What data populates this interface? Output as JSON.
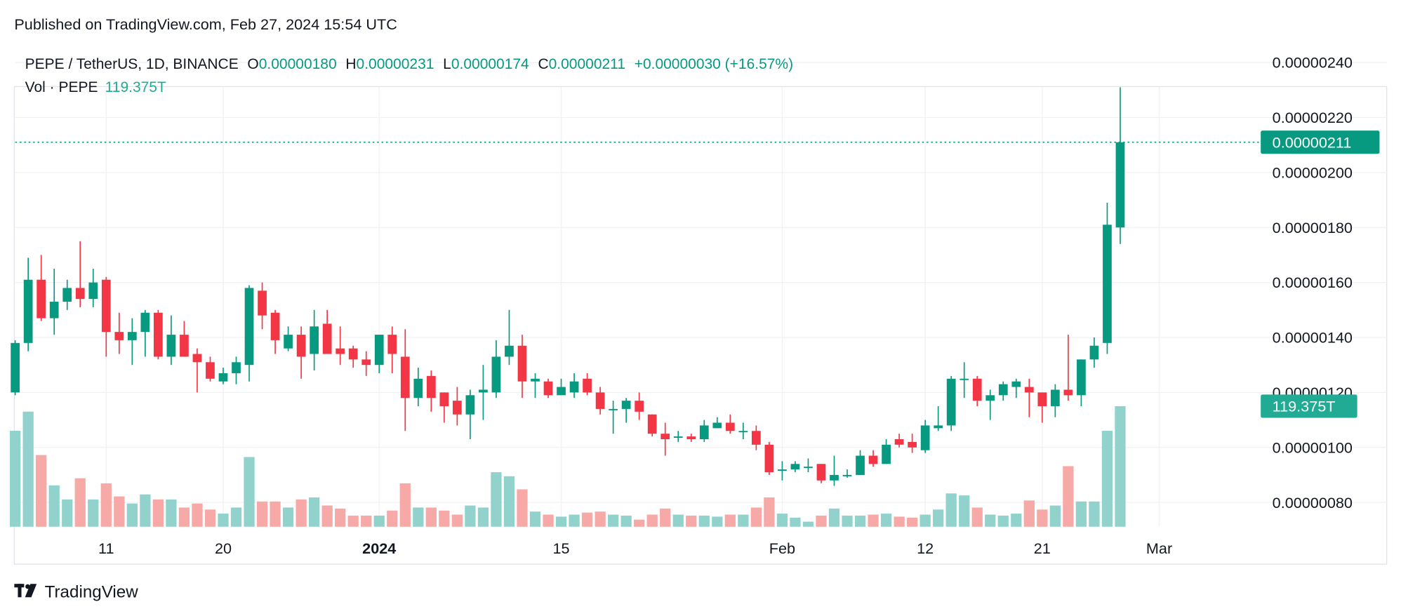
{
  "published": "Published on TradingView.com, Feb 27, 2024 15:54 UTC",
  "legend": {
    "symbol": "PEPE / TetherUS, 1D, BINANCE",
    "o_label": "O",
    "o_value": "0.00000180",
    "h_label": "H",
    "h_value": "0.00000231",
    "l_label": "L",
    "l_value": "0.00000174",
    "c_label": "C",
    "c_value": "0.00000211",
    "change": "+0.00000030 (+16.57%)",
    "vol_label": "Vol · PEPE",
    "vol_value": "119.375T"
  },
  "price_label": "0.00000211",
  "volume_label": "119.375T",
  "logo_text": "TradingView",
  "colors": {
    "up": "#089981",
    "down": "#f23645",
    "vol_up": "#92d2cc",
    "vol_down": "#f7a9a7",
    "grid": "#f0f1f3",
    "text": "#131722",
    "label_bg": "#089981",
    "vol_label_bg": "#22ab94"
  },
  "chart_data": {
    "type": "candlestick",
    "title": "PEPE / TetherUS, 1D, BINANCE",
    "grid": true,
    "ylim": [
      7.4e-07,
      2.48e-06
    ],
    "y_ticks": [
      "0.00000240",
      "0.00000220",
      "0.00000200",
      "0.00000180",
      "0.00000160",
      "0.00000140",
      "0.00000120",
      "0.00000100",
      "0.00000080"
    ],
    "x_ticks": [
      {
        "label": "11",
        "date": "2023-12-11",
        "bold": false
      },
      {
        "label": "20",
        "date": "2023-12-20",
        "bold": false
      },
      {
        "label": "2024",
        "date": "2024-01-01",
        "bold": true
      },
      {
        "label": "15",
        "date": "2024-01-15",
        "bold": false
      },
      {
        "label": "Feb",
        "date": "2024-02-01",
        "bold": false
      },
      {
        "label": "12",
        "date": "2024-02-12",
        "bold": false
      },
      {
        "label": "21",
        "date": "2024-02-21",
        "bold": false
      },
      {
        "label": "Mar",
        "date": "2024-03-01",
        "bold": false
      }
    ],
    "first_date": "2023-12-04",
    "columns": [
      "open",
      "high",
      "low",
      "close",
      "volume_T"
    ],
    "rows": [
      [
        1.2e-06,
        1.39e-06,
        1.19e-06,
        1.38e-06,
        95
      ],
      [
        1.38e-06,
        1.69e-06,
        1.35e-06,
        1.61e-06,
        114
      ],
      [
        1.61e-06,
        1.7e-06,
        1.46e-06,
        1.47e-06,
        71
      ],
      [
        1.47e-06,
        1.65e-06,
        1.41e-06,
        1.53e-06,
        41
      ],
      [
        1.53e-06,
        1.61e-06,
        1.5e-06,
        1.58e-06,
        27
      ],
      [
        1.58e-06,
        1.75e-06,
        1.51e-06,
        1.54e-06,
        48
      ],
      [
        1.54e-06,
        1.65e-06,
        1.51e-06,
        1.6e-06,
        27
      ],
      [
        1.61e-06,
        1.62e-06,
        1.33e-06,
        1.42e-06,
        43
      ],
      [
        1.42e-06,
        1.49e-06,
        1.34e-06,
        1.39e-06,
        30
      ],
      [
        1.39e-06,
        1.47e-06,
        1.3e-06,
        1.42e-06,
        23
      ],
      [
        1.42e-06,
        1.5e-06,
        1.33e-06,
        1.49e-06,
        32
      ],
      [
        1.49e-06,
        1.5e-06,
        1.32e-06,
        1.33e-06,
        27
      ],
      [
        1.33e-06,
        1.48e-06,
        1.3e-06,
        1.41e-06,
        27
      ],
      [
        1.41e-06,
        1.46e-06,
        1.33e-06,
        1.33e-06,
        19
      ],
      [
        1.34e-06,
        1.36e-06,
        1.2e-06,
        1.31e-06,
        23
      ],
      [
        1.31e-06,
        1.33e-06,
        1.24e-06,
        1.25e-06,
        17
      ],
      [
        1.24e-06,
        1.29e-06,
        1.23e-06,
        1.27e-06,
        13
      ],
      [
        1.27e-06,
        1.33e-06,
        1.23e-06,
        1.31e-06,
        19
      ],
      [
        1.3e-06,
        1.59e-06,
        1.24e-06,
        1.58e-06,
        69
      ],
      [
        1.57e-06,
        1.6e-06,
        1.43e-06,
        1.48e-06,
        25
      ],
      [
        1.49e-06,
        1.5e-06,
        1.34e-06,
        1.39e-06,
        25
      ],
      [
        1.36e-06,
        1.44e-06,
        1.35e-06,
        1.41e-06,
        19
      ],
      [
        1.41e-06,
        1.44e-06,
        1.25e-06,
        1.33e-06,
        27
      ],
      [
        1.34e-06,
        1.5e-06,
        1.28e-06,
        1.44e-06,
        29
      ],
      [
        1.45e-06,
        1.5e-06,
        1.34e-06,
        1.34e-06,
        21
      ],
      [
        1.36e-06,
        1.44e-06,
        1.3e-06,
        1.34e-06,
        18
      ],
      [
        1.36e-06,
        1.37e-06,
        1.29e-06,
        1.32e-06,
        11
      ],
      [
        1.32e-06,
        1.35e-06,
        1.26e-06,
        1.3e-06,
        11
      ],
      [
        1.3e-06,
        1.41e-06,
        1.27e-06,
        1.41e-06,
        11
      ],
      [
        1.41e-06,
        1.44e-06,
        1.27e-06,
        1.34e-06,
        16
      ],
      [
        1.33e-06,
        1.43e-06,
        1.06e-06,
        1.18e-06,
        43
      ],
      [
        1.18e-06,
        1.29e-06,
        1.15e-06,
        1.25e-06,
        19
      ],
      [
        1.26e-06,
        1.28e-06,
        1.13e-06,
        1.18e-06,
        19
      ],
      [
        1.2e-06,
        1.2e-06,
        1.09e-06,
        1.15e-06,
        16
      ],
      [
        1.17e-06,
        1.22e-06,
        1.08e-06,
        1.12e-06,
        12
      ],
      [
        1.12e-06,
        1.21e-06,
        1.03e-06,
        1.19e-06,
        21
      ],
      [
        1.2e-06,
        1.3e-06,
        1.1e-06,
        1.21e-06,
        19
      ],
      [
        1.2e-06,
        1.39e-06,
        1.18e-06,
        1.33e-06,
        54
      ],
      [
        1.33e-06,
        1.5e-06,
        1.3e-06,
        1.37e-06,
        50
      ],
      [
        1.37e-06,
        1.41e-06,
        1.18e-06,
        1.24e-06,
        37
      ],
      [
        1.24e-06,
        1.27e-06,
        1.18e-06,
        1.25e-06,
        15
      ],
      [
        1.24e-06,
        1.25e-06,
        1.18e-06,
        1.19e-06,
        12
      ],
      [
        1.19e-06,
        1.25e-06,
        1.19e-06,
        1.22e-06,
        10
      ],
      [
        1.2e-06,
        1.27e-06,
        1.18e-06,
        1.24e-06,
        12
      ],
      [
        1.25e-06,
        1.27e-06,
        1.19e-06,
        1.2e-06,
        14
      ],
      [
        1.2e-06,
        1.22e-06,
        1.12e-06,
        1.14e-06,
        15
      ],
      [
        1.14e-06,
        1.17e-06,
        1.05e-06,
        1.14e-06,
        12
      ],
      [
        1.14e-06,
        1.18e-06,
        1.09e-06,
        1.17e-06,
        11
      ],
      [
        1.17e-06,
        1.2e-06,
        1.1e-06,
        1.13e-06,
        7
      ],
      [
        1.12e-06,
        1.12e-06,
        1.04e-06,
        1.05e-06,
        12
      ],
      [
        1.05e-06,
        1.09e-06,
        9.7e-07,
        1.03e-06,
        18
      ],
      [
        1.04e-06,
        1.06e-06,
        1.02e-06,
        1.04e-06,
        12
      ],
      [
        1.04e-06,
        1.05e-06,
        1.02e-06,
        1.03e-06,
        11
      ],
      [
        1.03e-06,
        1.1e-06,
        1.02e-06,
        1.08e-06,
        11
      ],
      [
        1.07e-06,
        1.11e-06,
        1.07e-06,
        1.09e-06,
        10
      ],
      [
        1.09e-06,
        1.12e-06,
        1.05e-06,
        1.06e-06,
        12
      ],
      [
        1.06e-06,
        1.09e-06,
        1.03e-06,
        1.06e-06,
        12
      ],
      [
        1.06e-06,
        1.08e-06,
        9.9e-07,
        1.01e-06,
        19
      ],
      [
        1.01e-06,
        1.02e-06,
        9e-07,
        9.1e-07,
        29
      ],
      [
        9.2e-07,
        9.5e-07,
        8.8e-07,
        9.2e-07,
        13
      ],
      [
        9.2e-07,
        9.5e-07,
        9.1e-07,
        9.4e-07,
        9
      ],
      [
        9.3e-07,
        9.6e-07,
        9.1e-07,
        9.3e-07,
        5
      ],
      [
        9.4e-07,
        9.4e-07,
        8.7e-07,
        8.8e-07,
        11
      ],
      [
        8.8e-07,
        9.7e-07,
        8.6e-07,
        9e-07,
        18
      ],
      [
        9e-07,
        9.2e-07,
        8.9e-07,
        9e-07,
        11
      ],
      [
        9e-07,
        9.9e-07,
        9e-07,
        9.7e-07,
        11
      ],
      [
        9.7e-07,
        9.9e-07,
        9.3e-07,
        9.4e-07,
        12
      ],
      [
        9.4e-07,
        1.03e-06,
        9.4e-07,
        1.01e-06,
        13
      ],
      [
        1.03e-06,
        1.05e-06,
        1e-06,
        1.01e-06,
        10
      ],
      [
        1.02e-06,
        1.05e-06,
        9.8e-07,
        1e-06,
        9
      ],
      [
        9.9e-07,
        1.1e-06,
        9.8e-07,
        1.08e-06,
        12
      ],
      [
        1.07e-06,
        1.15e-06,
        1.06e-06,
        1.08e-06,
        17
      ],
      [
        1.08e-06,
        1.26e-06,
        1.06e-06,
        1.25e-06,
        33
      ],
      [
        1.25e-06,
        1.31e-06,
        1.18e-06,
        1.25e-06,
        31
      ],
      [
        1.25e-06,
        1.26e-06,
        1.15e-06,
        1.17e-06,
        19
      ],
      [
        1.17e-06,
        1.21e-06,
        1.1e-06,
        1.19e-06,
        12
      ],
      [
        1.19e-06,
        1.24e-06,
        1.17e-06,
        1.23e-06,
        11
      ],
      [
        1.22e-06,
        1.25e-06,
        1.18e-06,
        1.24e-06,
        13
      ],
      [
        1.22e-06,
        1.25e-06,
        1.11e-06,
        1.2e-06,
        26
      ],
      [
        1.2e-06,
        1.2e-06,
        1.09e-06,
        1.15e-06,
        17
      ],
      [
        1.15e-06,
        1.23e-06,
        1.11e-06,
        1.21e-06,
        21
      ],
      [
        1.21e-06,
        1.41e-06,
        1.17e-06,
        1.19e-06,
        60
      ],
      [
        1.19e-06,
        1.32e-06,
        1.15e-06,
        1.32e-06,
        25
      ],
      [
        1.32e-06,
        1.4e-06,
        1.29e-06,
        1.37e-06,
        25
      ],
      [
        1.38e-06,
        1.89e-06,
        1.34e-06,
        1.81e-06,
        95
      ],
      [
        1.8e-06,
        2.31e-06,
        1.74e-06,
        2.11e-06,
        119.375
      ]
    ],
    "last_price": 2.11e-06,
    "last_volume_T": 119.375
  }
}
